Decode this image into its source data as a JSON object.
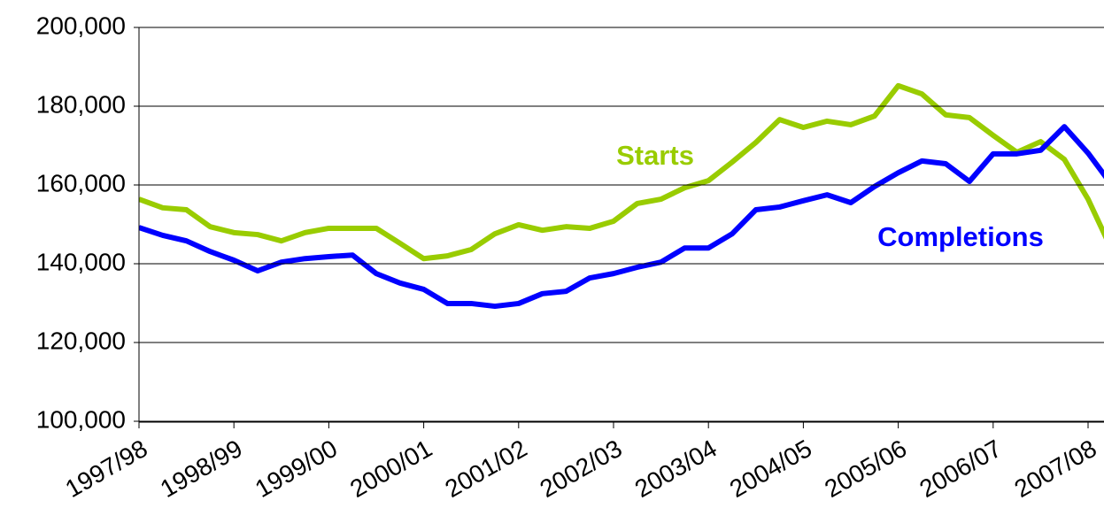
{
  "chart_data": {
    "type": "line",
    "categories": [
      "1997/98",
      null,
      null,
      null,
      "1998/99",
      null,
      null,
      null,
      "1999/00",
      null,
      null,
      null,
      "2000/01",
      null,
      null,
      null,
      "2001/02",
      null,
      null,
      null,
      "2002/03",
      null,
      null,
      null,
      "2003/04",
      null,
      null,
      null,
      "2004/05",
      null,
      null,
      null,
      "2005/06",
      null,
      null,
      null,
      "2006/07",
      null,
      null,
      null,
      "2007/08",
      null
    ],
    "series": [
      {
        "name": "Starts",
        "color": "#99cc00",
        "values": [
          156400,
          154200,
          153700,
          149400,
          147900,
          147400,
          145800,
          147900,
          149000,
          149000,
          149000,
          145200,
          141300,
          142000,
          143600,
          147600,
          149900,
          148500,
          149400,
          149000,
          150800,
          155300,
          156400,
          159300,
          161100,
          165800,
          170800,
          176600,
          174600,
          176200,
          175300,
          177500,
          185200,
          183100,
          177800,
          177100,
          172600,
          168300,
          171000,
          166500,
          156400,
          143500
        ]
      },
      {
        "name": "Completions",
        "color": "#0000ff",
        "values": [
          149200,
          147200,
          145800,
          143100,
          140900,
          138200,
          140400,
          141300,
          141800,
          142200,
          137500,
          135100,
          133500,
          129900,
          129900,
          129200,
          129900,
          132400,
          133000,
          136400,
          137500,
          139100,
          140400,
          144000,
          144000,
          147600,
          153700,
          154400,
          156000,
          157500,
          155500,
          159600,
          163100,
          166100,
          165400,
          160900,
          167900,
          167900,
          168800,
          174800,
          168100,
          160000
        ]
      }
    ],
    "ylim": [
      100000,
      200000
    ],
    "yticks": [
      {
        "value": 100000,
        "label": "100,000"
      },
      {
        "value": 120000,
        "label": "120,000"
      },
      {
        "value": 140000,
        "label": "140,000"
      },
      {
        "value": 160000,
        "label": "160,000"
      },
      {
        "value": 180000,
        "label": "180,000"
      },
      {
        "value": 200000,
        "label": "200,000"
      }
    ],
    "grid": true
  }
}
